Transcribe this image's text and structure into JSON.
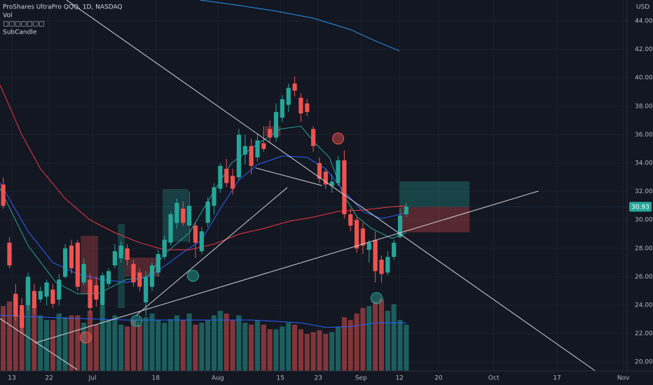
{
  "chart_data": {
    "type": "candlestick",
    "title": "ProShares UltraPro QQQ, 1D, NASDAQ",
    "legend_items": [
      "Vol",
      "□□□□□□□",
      "SubCandle"
    ],
    "y_unit": "USD",
    "xlim": [
      -0.52,
      100.6
    ],
    "ylim": [
      19.37,
      45.48
    ],
    "volume_lim": [
      0,
      400
    ],
    "grid": true,
    "xticks": [
      {
        "value": 1.4,
        "label": "13"
      },
      {
        "value": 7.4,
        "label": "22"
      },
      {
        "value": 14.4,
        "label": "Jul"
      },
      {
        "value": 24.6,
        "label": "18"
      },
      {
        "value": 34.6,
        "label": "Aug"
      },
      {
        "value": 44.7,
        "label": "15"
      },
      {
        "value": 50.8,
        "label": "23"
      },
      {
        "value": 57.7,
        "label": "Sep"
      },
      {
        "value": 63.9,
        "label": "12"
      },
      {
        "value": 70.2,
        "label": "20"
      },
      {
        "value": 79.1,
        "label": "Oct"
      },
      {
        "value": 89.3,
        "label": "17"
      },
      {
        "value": 100,
        "label": "Nov"
      }
    ],
    "yticks": [
      {
        "value": 20,
        "label": "20.00"
      },
      {
        "value": 22,
        "label": "22.00"
      },
      {
        "value": 24,
        "label": "24.00"
      },
      {
        "value": 26,
        "label": "26.00"
      },
      {
        "value": 28,
        "label": "28.00"
      },
      {
        "value": 30,
        "label": "30.00"
      },
      {
        "value": 32,
        "label": "32.00"
      },
      {
        "value": 34,
        "label": "34.00"
      },
      {
        "value": 36,
        "label": "36.00"
      },
      {
        "value": 38,
        "label": "38.00"
      },
      {
        "value": 40,
        "label": "40.00"
      },
      {
        "value": 42,
        "label": "42.00"
      },
      {
        "value": 44,
        "label": "44.00"
      }
    ],
    "up_color": "#26a69a",
    "down_color": "#ef5350",
    "open": [
      32.5,
      28.4,
      24.8,
      24.0,
      24.0,
      25.0,
      24.4,
      24.6,
      25.1,
      24.4,
      26.0,
      28.2,
      28.4,
      25.6,
      25.8,
      25.4,
      24.0,
      25.5,
      26.8,
      27.3,
      28.0,
      26.9,
      26.3,
      24.2,
      25.3,
      26.3,
      27.4,
      28.4,
      29.8,
      30.8,
      29.6,
      29.6,
      27.8,
      29.8,
      31.0,
      32.2,
      33.6,
      33.1,
      33.0,
      34.6,
      35.2,
      34.4,
      35.4,
      36.4,
      35.8,
      37.2,
      38.1,
      39.6,
      38.6,
      38.2,
      36.4,
      34.0,
      33.4,
      32.4,
      32.6,
      34.2,
      30.4,
      30.0,
      29.4,
      27.9,
      28.6,
      27.2,
      26.3,
      27.4,
      28.8,
      30.4
    ],
    "high": [
      33.0,
      28.8,
      25.5,
      24.5,
      26.3,
      25.5,
      25.3,
      25.8,
      25.5,
      26.2,
      28.3,
      28.6,
      28.6,
      27.3,
      26.2,
      26.0,
      26.3,
      26.6,
      28.3,
      28.5,
      28.3,
      27.2,
      26.6,
      26.4,
      27.0,
      27.9,
      28.9,
      30.6,
      31.5,
      31.3,
      32.0,
      29.8,
      29.5,
      31.6,
      32.6,
      34.0,
      34.3,
      33.6,
      36.4,
      36.0,
      35.7,
      36.1,
      36.6,
      37.0,
      38.2,
      38.8,
      39.6,
      40.1,
      38.9,
      38.5,
      36.6,
      34.4,
      33.6,
      33.2,
      34.5,
      34.9,
      30.8,
      30.2,
      29.8,
      28.6,
      29.2,
      27.5,
      27.8,
      28.6,
      30.8,
      31.2
    ],
    "low": [
      30.8,
      26.6,
      22.9,
      22.0,
      23.6,
      23.4,
      24.2,
      24.0,
      23.8,
      24.0,
      25.9,
      26.2,
      25.0,
      25.4,
      23.4,
      23.9,
      23.8,
      25.3,
      26.6,
      27.0,
      26.8,
      25.3,
      25.0,
      23.2,
      25.0,
      26.0,
      27.2,
      28.2,
      29.4,
      29.6,
      28.4,
      27.3,
      27.6,
      29.5,
      30.4,
      31.9,
      32.3,
      31.8,
      32.8,
      33.9,
      33.2,
      34.1,
      34.8,
      35.4,
      35.5,
      36.9,
      37.6,
      38.7,
      36.9,
      37.3,
      34.8,
      32.6,
      32.2,
      31.9,
      32.4,
      30.1,
      29.2,
      27.7,
      27.6,
      27.0,
      25.6,
      25.6,
      26.1,
      27.2,
      28.7,
      30.2
    ],
    "close": [
      31.0,
      26.8,
      23.2,
      22.4,
      26.0,
      23.8,
      25.0,
      25.6,
      24.1,
      25.8,
      28.0,
      26.6,
      25.3,
      26.9,
      23.8,
      24.4,
      26.1,
      26.4,
      27.8,
      28.2,
      27.2,
      25.6,
      25.3,
      26.0,
      26.8,
      27.6,
      28.6,
      30.4,
      31.2,
      29.8,
      31.0,
      28.4,
      29.2,
      31.3,
      32.3,
      33.8,
      32.6,
      32.2,
      36.0,
      35.2,
      33.8,
      35.6,
      35.0,
      35.8,
      37.6,
      38.5,
      39.3,
      39.1,
      37.5,
      37.6,
      35.2,
      32.9,
      32.5,
      32.7,
      34.2,
      30.4,
      29.6,
      28.0,
      28.2,
      28.4,
      26.4,
      26.2,
      27.4,
      28.4,
      30.3,
      30.93
    ],
    "volume": [
      70,
      75,
      80,
      62,
      98,
      70,
      60,
      55,
      55,
      62,
      58,
      60,
      60,
      52,
      65,
      50,
      70,
      55,
      60,
      50,
      48,
      55,
      50,
      58,
      62,
      55,
      52,
      56,
      60,
      55,
      62,
      50,
      52,
      55,
      60,
      65,
      62,
      55,
      60,
      52,
      50,
      55,
      50,
      45,
      45,
      48,
      52,
      50,
      45,
      40,
      42,
      44,
      40,
      42,
      48,
      58,
      55,
      62,
      68,
      70,
      75,
      78,
      65,
      72,
      55,
      50
    ],
    "volume_colors": [
      "rgba(38,166,154,0.5)",
      "rgba(239,83,80,0.5)"
    ],
    "last_price": 30.93,
    "lines": [
      {
        "color": "#26a69a",
        "points": [
          [
            -0.5,
            32.2
          ],
          [
            4,
            28.2
          ],
          [
            8.5,
            25.6
          ],
          [
            12,
            24.8
          ],
          [
            15.3,
            24.8
          ],
          [
            19.8,
            25.8
          ],
          [
            23.2,
            26.0
          ],
          [
            26,
            27.6
          ],
          [
            30,
            29.1
          ],
          [
            33.4,
            31.6
          ],
          [
            36.8,
            34.0
          ],
          [
            40.2,
            35.1
          ],
          [
            44.7,
            36.4
          ],
          [
            48,
            36.6
          ],
          [
            50.3,
            35.4
          ],
          [
            52.6,
            34.4
          ],
          [
            54.8,
            31.8
          ],
          [
            57.1,
            30.2
          ],
          [
            59.4,
            29.4
          ],
          [
            62.7,
            28.7
          ],
          [
            65,
            29.1
          ]
        ]
      },
      {
        "color": "#2962ff",
        "points": [
          [
            -0.5,
            32.6
          ],
          [
            4,
            29.2
          ],
          [
            8,
            27.0
          ],
          [
            12,
            26.2
          ],
          [
            16,
            25.8
          ],
          [
            20,
            25.6
          ],
          [
            24,
            26.1
          ],
          [
            28,
            27.4
          ],
          [
            32,
            28.6
          ],
          [
            35,
            30.8
          ],
          [
            38,
            32.8
          ],
          [
            41,
            33.9
          ],
          [
            45,
            34.5
          ],
          [
            49,
            34.4
          ],
          [
            52,
            33.6
          ],
          [
            55,
            32.0
          ],
          [
            58,
            30.6
          ],
          [
            61,
            30.1
          ],
          [
            65,
            30.5
          ]
        ]
      },
      {
        "color": "#f23645",
        "points": [
          [
            -0.5,
            39.5
          ],
          [
            3,
            36
          ],
          [
            6,
            33.6
          ],
          [
            10,
            31.5
          ],
          [
            14,
            30
          ],
          [
            18,
            29.1
          ],
          [
            22,
            28.4
          ],
          [
            26,
            27.9
          ],
          [
            30,
            27.9
          ],
          [
            34,
            28.3
          ],
          [
            38,
            29.0
          ],
          [
            42,
            29.4
          ],
          [
            46,
            29.9
          ],
          [
            50,
            30.2
          ],
          [
            54,
            30.6
          ],
          [
            58,
            30.7
          ],
          [
            62,
            30.9
          ],
          [
            65,
            31.0
          ]
        ]
      },
      {
        "color": "#2196f3",
        "points": [
          [
            31.7,
            45.48
          ],
          [
            38,
            45.1
          ],
          [
            44,
            44.7
          ],
          [
            50,
            44.2
          ],
          [
            56,
            43.4
          ],
          [
            60,
            42.6
          ],
          [
            63.9,
            41.9
          ]
        ]
      }
    ],
    "volume_ma": {
      "color": "#2962ff",
      "points": [
        [
          -0.5,
          60
        ],
        [
          10,
          57
        ],
        [
          20,
          55
        ],
        [
          30,
          55
        ],
        [
          40,
          55
        ],
        [
          48,
          52
        ],
        [
          52,
          47
        ],
        [
          56,
          48
        ],
        [
          60,
          52
        ],
        [
          65,
          52
        ]
      ]
    },
    "trendlines": [
      {
        "color": "#d1d4dc",
        "points": [
          [
            10.2,
            45.48
          ],
          [
            95.5,
            19.37
          ]
        ]
      },
      {
        "color": "#d1d4dc",
        "points": [
          [
            5.1,
            21.34
          ],
          [
            86.3,
            32.03
          ]
        ]
      },
      {
        "color": "#d1d4dc",
        "points": [
          [
            21.5,
            23.31
          ],
          [
            45.8,
            32.28
          ]
        ]
      },
      {
        "color": "#d1d4dc",
        "points": [
          [
            -0.52,
            23.06
          ],
          [
            11.9,
            19.47
          ]
        ]
      },
      {
        "color": "#d1d4dc",
        "points": [
          [
            40.7,
            33.66
          ],
          [
            51.4,
            32.42
          ]
        ]
      }
    ],
    "zones": [
      {
        "color": "rgba(239,83,80,0.28)",
        "x": [
          12.5,
          15.3
        ],
        "y": [
          28.88,
          24.79
        ]
      },
      {
        "color": "rgba(38,166,154,0.28)",
        "x": [
          25.7,
          29.8
        ],
        "y": [
          32.18,
          28.48
        ]
      },
      {
        "color": "rgba(239,83,80,0.28)",
        "x": [
          19.6,
          25.2
        ],
        "y": [
          27.35,
          26.02
        ]
      },
      {
        "color": "rgba(38,166,154,0.28)",
        "x": [
          18.5,
          19.6
        ],
        "y": [
          29.71,
          23.8
        ]
      },
      {
        "color": "rgba(239,83,80,0.28)",
        "x": [
          42.2,
          44.7
        ],
        "y": [
          36.6,
          35.9
        ]
      },
      {
        "color": "rgba(38,166,154,0.3)",
        "x": [
          63.9,
          75.2
        ],
        "y": [
          32.72,
          30.93
        ]
      },
      {
        "color": "rgba(239,83,80,0.3)",
        "x": [
          63.9,
          75.2
        ],
        "y": [
          30.93,
          29.13
        ]
      }
    ],
    "markers": [
      {
        "color": "#ef5350",
        "x": 54,
        "y": 35.73
      },
      {
        "color": "#26a69a",
        "x": 30.6,
        "y": 26.07
      },
      {
        "color": "#26a69a",
        "x": 21.5,
        "y": 22.9
      },
      {
        "color": "#ef5350",
        "x": 13.3,
        "y": 21.73
      },
      {
        "color": "#26a69a",
        "x": 60.2,
        "y": 24.5
      }
    ]
  }
}
